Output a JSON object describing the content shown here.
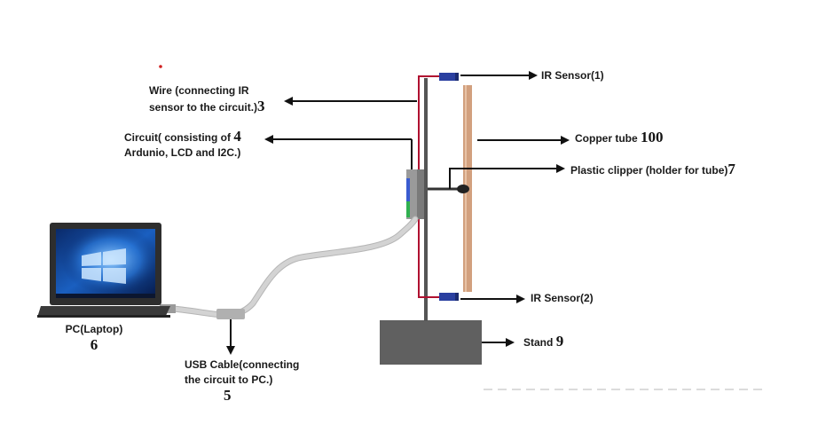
{
  "labels": {
    "wire": {
      "line1": "Wire (connecting IR",
      "line2": "sensor to the circuit.)",
      "number": "3"
    },
    "circuit": {
      "line1": "Circuit( consisting of",
      "line2": "Ardunio, LCD and I2C.)",
      "number": "4"
    },
    "ir_sensor_1": {
      "text": "IR Sensor(1)"
    },
    "ir_sensor_2": {
      "text": "IR Sensor(2)"
    },
    "copper_tube": {
      "text": "Copper tube",
      "number": "100"
    },
    "plastic_clipper": {
      "text": "Plastic clipper (holder for tube)",
      "number": "7"
    },
    "stand": {
      "text": "Stand",
      "number": "9"
    },
    "laptop": {
      "text": "PC(Laptop)",
      "number": "6"
    },
    "usb_cable": {
      "line1": "USB Cable(connecting",
      "line2": "the circuit to PC.)",
      "number": "5"
    }
  },
  "colors": {
    "wire_red": "#b01030",
    "sensor_blue": "#2a3fa0",
    "copper": "#d2a07e",
    "stand": "#606060",
    "cable": "#c8c8c8",
    "arrow": "#111111"
  }
}
